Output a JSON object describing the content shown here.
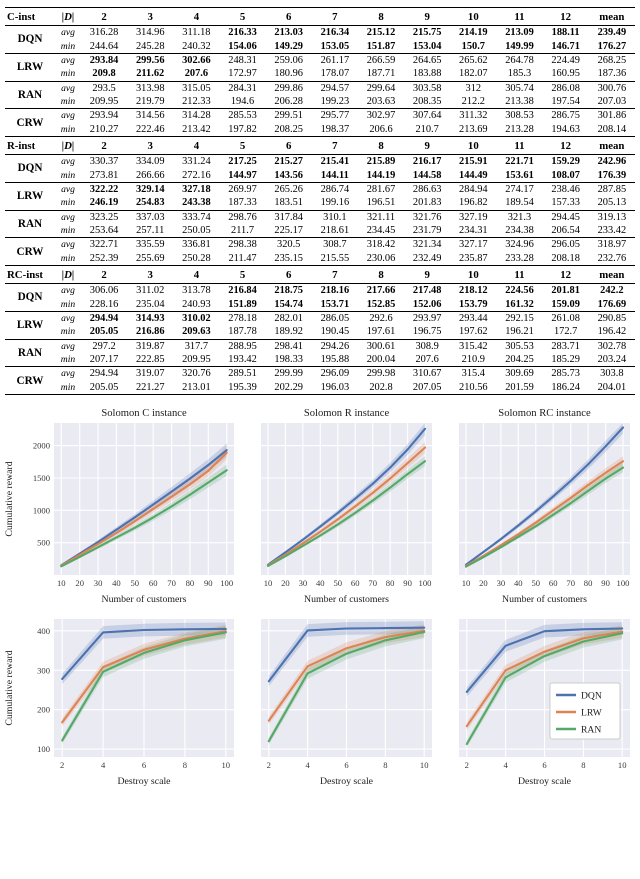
{
  "table": {
    "d_header": "|D|",
    "stat_labels": [
      "avg",
      "min"
    ],
    "columns": [
      "2",
      "3",
      "4",
      "5",
      "6",
      "7",
      "8",
      "9",
      "10",
      "11",
      "12",
      "mean"
    ],
    "sections": [
      {
        "name": "C-inst",
        "methods": [
          {
            "name": "DQN",
            "bold": [
              3,
              4,
              5,
              6,
              7,
              8,
              9,
              10,
              11
            ],
            "avg": [
              "316.28",
              "314.96",
              "311.18",
              "216.33",
              "213.03",
              "216.34",
              "215.12",
              "215.75",
              "214.19",
              "213.09",
              "188.11",
              "239.49"
            ],
            "min": [
              "244.64",
              "245.28",
              "240.32",
              "154.06",
              "149.29",
              "153.05",
              "151.87",
              "153.04",
              "150.7",
              "149.99",
              "146.71",
              "176.27"
            ]
          },
          {
            "name": "LRW",
            "bold": [
              0,
              1,
              2
            ],
            "avg": [
              "293.84",
              "299.56",
              "302.66",
              "248.31",
              "259.06",
              "261.17",
              "266.59",
              "264.65",
              "265.62",
              "264.78",
              "224.49",
              "268.25"
            ],
            "min": [
              "209.8",
              "211.62",
              "207.6",
              "172.97",
              "180.96",
              "178.07",
              "187.71",
              "183.88",
              "182.07",
              "185.3",
              "160.95",
              "187.36"
            ]
          },
          {
            "name": "RAN",
            "bold": [],
            "avg": [
              "293.5",
              "313.98",
              "315.05",
              "284.31",
              "299.86",
              "294.57",
              "299.64",
              "303.58",
              "312",
              "305.74",
              "286.08",
              "300.76"
            ],
            "min": [
              "209.95",
              "219.79",
              "212.33",
              "194.6",
              "206.28",
              "199.23",
              "203.63",
              "208.35",
              "212.2",
              "213.38",
              "197.54",
              "207.03"
            ]
          },
          {
            "name": "CRW",
            "bold": [],
            "avg": [
              "293.94",
              "314.56",
              "314.28",
              "285.53",
              "299.51",
              "295.77",
              "302.97",
              "307.64",
              "311.32",
              "308.53",
              "286.75",
              "301.86"
            ],
            "min": [
              "210.27",
              "222.46",
              "213.42",
              "197.82",
              "208.25",
              "198.37",
              "206.6",
              "210.7",
              "213.69",
              "213.28",
              "194.63",
              "208.14"
            ]
          }
        ]
      },
      {
        "name": "R-inst",
        "methods": [
          {
            "name": "DQN",
            "bold": [
              3,
              4,
              5,
              6,
              7,
              8,
              9,
              10,
              11
            ],
            "avg": [
              "330.37",
              "334.09",
              "331.24",
              "217.25",
              "215.27",
              "215.41",
              "215.89",
              "216.17",
              "215.91",
              "221.71",
              "159.29",
              "242.96"
            ],
            "min": [
              "273.81",
              "266.66",
              "272.16",
              "144.97",
              "143.56",
              "144.11",
              "144.19",
              "144.58",
              "144.49",
              "153.61",
              "108.07",
              "176.39"
            ]
          },
          {
            "name": "LRW",
            "bold": [
              0,
              1,
              2
            ],
            "avg": [
              "322.22",
              "329.14",
              "327.18",
              "269.97",
              "265.26",
              "286.74",
              "281.67",
              "286.63",
              "284.94",
              "274.17",
              "238.46",
              "287.85"
            ],
            "min": [
              "246.19",
              "254.83",
              "243.38",
              "187.33",
              "183.51",
              "199.16",
              "196.51",
              "201.83",
              "196.82",
              "189.54",
              "157.33",
              "205.13"
            ]
          },
          {
            "name": "RAN",
            "bold": [],
            "avg": [
              "323.25",
              "337.03",
              "333.74",
              "298.76",
              "317.84",
              "310.1",
              "321.11",
              "321.76",
              "327.19",
              "321.3",
              "294.45",
              "319.13"
            ],
            "min": [
              "253.64",
              "257.11",
              "250.05",
              "211.7",
              "225.17",
              "218.61",
              "234.45",
              "231.79",
              "234.31",
              "234.38",
              "206.54",
              "233.42"
            ]
          },
          {
            "name": "CRW",
            "bold": [],
            "avg": [
              "322.71",
              "335.59",
              "336.81",
              "298.38",
              "320.5",
              "308.7",
              "318.42",
              "321.34",
              "327.17",
              "324.96",
              "296.05",
              "318.97"
            ],
            "min": [
              "252.39",
              "255.69",
              "250.28",
              "211.47",
              "235.15",
              "215.55",
              "230.06",
              "232.49",
              "235.87",
              "233.28",
              "208.18",
              "232.76"
            ]
          }
        ]
      },
      {
        "name": "RC-inst",
        "methods": [
          {
            "name": "DQN",
            "bold": [
              3,
              4,
              5,
              6,
              7,
              8,
              9,
              10,
              11
            ],
            "avg": [
              "306.06",
              "311.02",
              "313.78",
              "216.84",
              "218.75",
              "218.16",
              "217.66",
              "217.48",
              "218.12",
              "224.56",
              "201.81",
              "242.2"
            ],
            "min": [
              "228.16",
              "235.04",
              "240.93",
              "151.89",
              "154.74",
              "153.71",
              "152.85",
              "152.06",
              "153.79",
              "161.32",
              "159.09",
              "176.69"
            ]
          },
          {
            "name": "LRW",
            "bold": [
              0,
              1,
              2
            ],
            "avg": [
              "294.94",
              "314.93",
              "310.02",
              "278.18",
              "282.01",
              "286.05",
              "292.6",
              "293.97",
              "293.44",
              "292.15",
              "261.08",
              "290.85"
            ],
            "min": [
              "205.05",
              "216.86",
              "209.63",
              "187.78",
              "189.92",
              "190.45",
              "197.61",
              "196.75",
              "197.62",
              "196.21",
              "172.7",
              "196.42"
            ]
          },
          {
            "name": "RAN",
            "bold": [],
            "avg": [
              "297.2",
              "319.87",
              "317.7",
              "288.95",
              "298.41",
              "294.26",
              "300.61",
              "308.9",
              "315.42",
              "305.53",
              "283.71",
              "302.78"
            ],
            "min": [
              "207.17",
              "222.85",
              "209.95",
              "193.42",
              "198.33",
              "195.88",
              "200.04",
              "207.6",
              "210.9",
              "204.25",
              "185.29",
              "203.24"
            ]
          },
          {
            "name": "CRW",
            "bold": [],
            "avg": [
              "294.94",
              "319.07",
              "320.76",
              "289.51",
              "299.99",
              "296.09",
              "299.98",
              "310.67",
              "315.4",
              "309.69",
              "285.73",
              "303.8"
            ],
            "min": [
              "205.05",
              "221.27",
              "213.01",
              "195.39",
              "202.29",
              "196.03",
              "202.8",
              "207.05",
              "210.56",
              "201.59",
              "186.24",
              "204.01"
            ]
          }
        ]
      }
    ]
  },
  "colors": {
    "dqn": "#4c72b0",
    "lrw": "#dd8452",
    "ran": "#55a868",
    "plot_bg": "#eaeaf2",
    "grid": "#ffffff"
  },
  "chart_data": [
    {
      "type": "line",
      "title": "Solomon C instance",
      "xlabel": "Number of customers",
      "ylabel": "Cumulative reward",
      "x": [
        10,
        20,
        30,
        40,
        50,
        60,
        70,
        80,
        90,
        100
      ],
      "xticks": [
        10,
        20,
        30,
        40,
        50,
        60,
        70,
        80,
        90,
        100
      ],
      "yticks": [
        500,
        1000,
        1500,
        2000
      ],
      "xlim": [
        6,
        104
      ],
      "ylim": [
        0,
        2350
      ],
      "ytick_labels": true,
      "legend": false,
      "band": 0.05,
      "grid": true,
      "series": [
        {
          "name": "DQN",
          "color": "#4c72b0",
          "values": [
            150,
            330,
            510,
            700,
            890,
            1090,
            1290,
            1490,
            1700,
            1930
          ]
        },
        {
          "name": "LRW",
          "color": "#dd8452",
          "values": [
            145,
            310,
            480,
            650,
            830,
            1020,
            1210,
            1400,
            1610,
            1890
          ]
        },
        {
          "name": "RAN",
          "color": "#55a868",
          "values": [
            135,
            280,
            430,
            580,
            730,
            890,
            1060,
            1240,
            1430,
            1620
          ]
        }
      ]
    },
    {
      "type": "line",
      "title": "Solomon R instance",
      "xlabel": "Number of customers",
      "ylabel": "",
      "x": [
        10,
        20,
        30,
        40,
        50,
        60,
        70,
        80,
        90,
        100
      ],
      "xticks": [
        10,
        20,
        30,
        40,
        50,
        60,
        70,
        80,
        90,
        100
      ],
      "yticks": [
        500,
        1000,
        1500,
        2000
      ],
      "xlim": [
        6,
        104
      ],
      "ylim": [
        0,
        2350
      ],
      "ytick_labels": false,
      "legend": false,
      "band": 0.04,
      "grid": true,
      "series": [
        {
          "name": "DQN",
          "color": "#4c72b0",
          "values": [
            160,
            350,
            545,
            750,
            960,
            1180,
            1410,
            1660,
            1940,
            2260
          ]
        },
        {
          "name": "LRW",
          "color": "#dd8452",
          "values": [
            150,
            315,
            490,
            670,
            860,
            1060,
            1270,
            1490,
            1730,
            1970
          ]
        },
        {
          "name": "RAN",
          "color": "#55a868",
          "values": [
            140,
            290,
            450,
            610,
            780,
            960,
            1150,
            1350,
            1560,
            1760
          ]
        }
      ]
    },
    {
      "type": "line",
      "title": "Solomon RC instance",
      "xlabel": "Number of customers",
      "ylabel": "",
      "x": [
        10,
        20,
        30,
        40,
        50,
        60,
        70,
        80,
        90,
        100
      ],
      "xticks": [
        10,
        20,
        30,
        40,
        50,
        60,
        70,
        80,
        90,
        100
      ],
      "yticks": [
        500,
        1000,
        1500,
        2000
      ],
      "xlim": [
        6,
        104
      ],
      "ylim": [
        0,
        2350
      ],
      "ytick_labels": false,
      "legend": false,
      "band": 0.04,
      "grid": true,
      "series": [
        {
          "name": "DQN",
          "color": "#4c72b0",
          "values": [
            160,
            355,
            555,
            765,
            985,
            1215,
            1455,
            1710,
            1990,
            2280
          ]
        },
        {
          "name": "LRW",
          "color": "#dd8452",
          "values": [
            140,
            295,
            460,
            630,
            810,
            1000,
            1190,
            1390,
            1580,
            1760
          ]
        },
        {
          "name": "RAN",
          "color": "#55a868",
          "values": [
            130,
            275,
            430,
            590,
            755,
            930,
            1110,
            1300,
            1490,
            1660
          ]
        }
      ]
    },
    {
      "type": "line",
      "title": "",
      "xlabel": "Destroy scale",
      "ylabel": "Cumulative reward",
      "x": [
        2,
        4,
        6,
        8,
        10
      ],
      "xticks": [
        2,
        4,
        6,
        8,
        10
      ],
      "yticks": [
        100,
        200,
        300,
        400
      ],
      "xlim": [
        1.6,
        10.4
      ],
      "ylim": [
        80,
        430
      ],
      "ytick_labels": true,
      "legend": false,
      "band": 0.025,
      "grid": true,
      "series": [
        {
          "name": "DQN",
          "color": "#4c72b0",
          "values": [
            278,
            396,
            402,
            404,
            405
          ]
        },
        {
          "name": "LRW",
          "color": "#dd8452",
          "values": [
            168,
            308,
            352,
            380,
            399
          ]
        },
        {
          "name": "RAN",
          "color": "#55a868",
          "values": [
            122,
            296,
            344,
            376,
            396
          ]
        }
      ]
    },
    {
      "type": "line",
      "title": "",
      "xlabel": "Destroy scale",
      "ylabel": "",
      "x": [
        2,
        4,
        6,
        8,
        10
      ],
      "xticks": [
        2,
        4,
        6,
        8,
        10
      ],
      "yticks": [
        100,
        200,
        300,
        400
      ],
      "xlim": [
        1.6,
        10.4
      ],
      "ylim": [
        80,
        430
      ],
      "ytick_labels": false,
      "legend": false,
      "band": 0.025,
      "grid": true,
      "series": [
        {
          "name": "DQN",
          "color": "#4c72b0",
          "values": [
            272,
            401,
            406,
            407,
            408
          ]
        },
        {
          "name": "LRW",
          "color": "#dd8452",
          "values": [
            172,
            310,
            356,
            384,
            400
          ]
        },
        {
          "name": "RAN",
          "color": "#55a868",
          "values": [
            120,
            292,
            342,
            376,
            397
          ]
        }
      ]
    },
    {
      "type": "line",
      "title": "",
      "xlabel": "Destroy scale",
      "ylabel": "",
      "x": [
        2,
        4,
        6,
        8,
        10
      ],
      "xticks": [
        2,
        4,
        6,
        8,
        10
      ],
      "yticks": [
        100,
        200,
        300,
        400
      ],
      "xlim": [
        1.6,
        10.4
      ],
      "ylim": [
        80,
        430
      ],
      "ytick_labels": false,
      "legend": true,
      "band": 0.025,
      "grid": true,
      "series": [
        {
          "name": "DQN",
          "color": "#4c72b0",
          "values": [
            245,
            362,
            399,
            404,
            406
          ]
        },
        {
          "name": "LRW",
          "color": "#dd8452",
          "values": [
            158,
            300,
            347,
            381,
            398
          ]
        },
        {
          "name": "RAN",
          "color": "#55a868",
          "values": [
            113,
            282,
            336,
            373,
            394
          ]
        }
      ]
    }
  ]
}
